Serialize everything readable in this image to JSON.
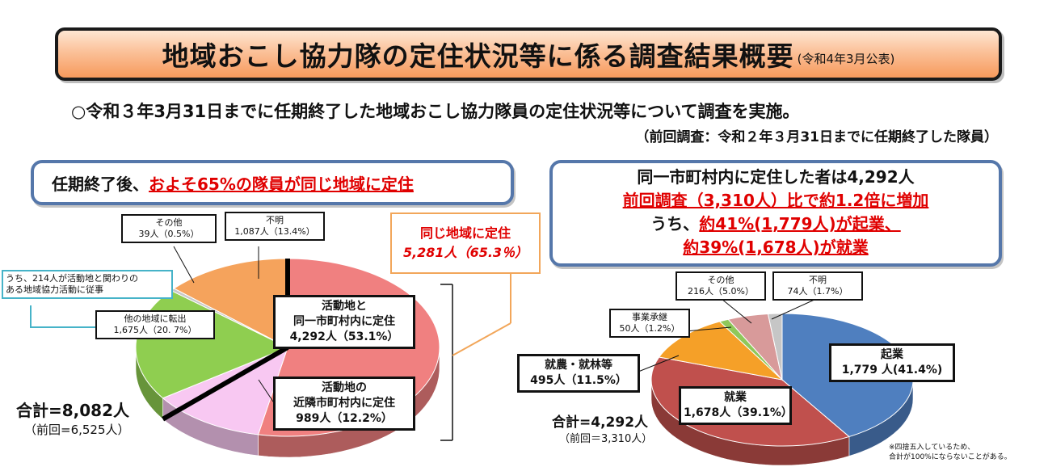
{
  "header": {
    "title": "地域おこし協力隊の定住状況等に係る調査結果概要",
    "published": "(令和4年3月公表)"
  },
  "lead": {
    "line1": "○令和３年3月31日までに任期終了した地域おこし協力隊員の定住状況等について調査を実施。",
    "line2": "（前回調査：令和２年３月31日までに任期終了した隊員）"
  },
  "highlight_left": {
    "prefix": "任期終了後、",
    "emphasis": "およそ65%の隊員が同じ地域に定住"
  },
  "highlight_right": {
    "line1": "同一市町村内に定住した者は4,292人",
    "line2": "前回調査（3,310人）比で約1.2倍に増加",
    "line3_prefix": "うち、",
    "line3_emphasis": "約41%(1,779人)が起業、",
    "line4": "約39%(1,678人)が就業"
  },
  "same_region": {
    "label": "同じ地域に定住",
    "value": "5,281人（65.3％）"
  },
  "activity_note": {
    "line1": "うち、214人が活動地と関わりの",
    "line2": "ある地域協力活動に従事"
  },
  "left_labels": {
    "same_muni_l1": "活動地と",
    "same_muni_l2": "同一市町村内に定住",
    "same_muni_v": "4,292人（53.1%）",
    "neighbor_l1": "活動地の",
    "neighbor_l2": "近隣市町村内に定住",
    "neighbor_v": "989人（12.2%）",
    "other_region_l": "他の地域に転出",
    "other_region_v": "1,675人（20. 7%）",
    "unknown_l": "不明",
    "unknown_v": "1,087人（13.4%）",
    "other_l": "その他",
    "other_v": "39人（0.5%）"
  },
  "left_total": {
    "total": "合計=8,082人",
    "previous": "（前回=6,525人）"
  },
  "right_labels": {
    "startup_l": "起業",
    "startup_v": "1,779 人(41.4%)",
    "employ_l": "就業",
    "employ_v": "1,678人（39.1%）",
    "agri_l": "就農・就林等",
    "agri_v": "495人（11.5%）",
    "succession_l": "事業承継",
    "succession_v": "50人（1.2%）",
    "other_l": "その他",
    "other_v": "216人（5.0%）",
    "unknown_l": "不明",
    "unknown_v": "74人（1.7%）"
  },
  "right_total": {
    "total": "合計=4,292人",
    "previous": "（前回＝3,310人）"
  },
  "footnote": {
    "line1": "※四捨五入しているため、",
    "line2": "合計が100%にならないことがある。"
  },
  "chart_data": [
    {
      "type": "pie",
      "total": 8082,
      "slices": [
        {
          "name": "活動地と同一市町村内に定住",
          "value": 4292,
          "percent": 53.1,
          "color": "#f08080"
        },
        {
          "name": "活動地の近隣市町村内に定住",
          "value": 989,
          "percent": 12.2,
          "color": "#f8c8f2"
        },
        {
          "name": "他の地域に転出",
          "value": 1675,
          "percent": 20.7,
          "color": "#8fce50"
        },
        {
          "name": "その他",
          "value": 39,
          "percent": 0.5,
          "color": "#c9c9c9"
        },
        {
          "name": "不明",
          "value": 1087,
          "percent": 13.4,
          "color": "#f5a35c"
        }
      ]
    },
    {
      "type": "pie",
      "total": 4292,
      "slices": [
        {
          "name": "起業",
          "value": 1779,
          "percent": 41.4,
          "color": "#4f7fbf"
        },
        {
          "name": "就業",
          "value": 1678,
          "percent": 39.1,
          "color": "#c0504d"
        },
        {
          "name": "就農・就林等",
          "value": 495,
          "percent": 11.5,
          "color": "#f5a028"
        },
        {
          "name": "事業承継",
          "value": 50,
          "percent": 1.2,
          "color": "#8fc85a"
        },
        {
          "name": "その他",
          "value": 216,
          "percent": 5.0,
          "color": "#d89a9a"
        },
        {
          "name": "不明",
          "value": 74,
          "percent": 1.7,
          "color": "#c6c6c6"
        }
      ]
    }
  ]
}
